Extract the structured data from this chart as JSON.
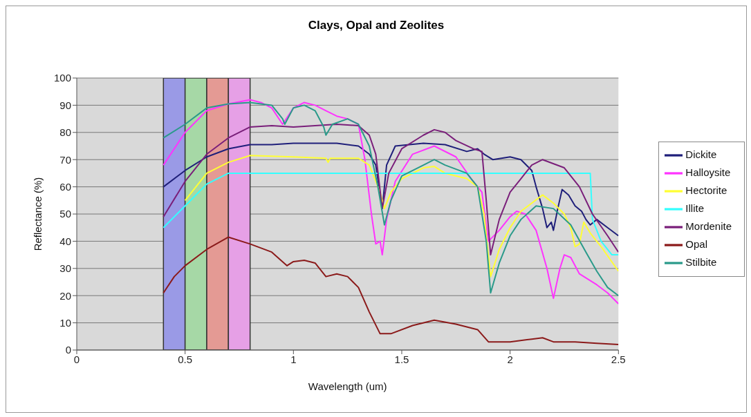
{
  "chart_data": {
    "type": "line",
    "title": "Clays, Opal and Zeolites",
    "xlabel": "Wavelength (um)",
    "ylabel": "Reflectance (%)",
    "xlim": [
      0,
      2.5
    ],
    "xticks": [
      0,
      0.5,
      1,
      1.5,
      2,
      2.5
    ],
    "ylim": [
      0,
      100
    ],
    "yticks": [
      0,
      10,
      20,
      30,
      40,
      50,
      60,
      70,
      80,
      90,
      100
    ],
    "grid": "y",
    "legend": "right",
    "marker": "none",
    "line_style": "solid",
    "bands": [
      {
        "axis": "x",
        "from": 0.4,
        "to": 0.5,
        "color": "#9a9ae6"
      },
      {
        "axis": "x",
        "from": 0.5,
        "to": 0.6,
        "color": "#a6d8a6"
      },
      {
        "axis": "x",
        "from": 0.6,
        "to": 0.7,
        "color": "#e49a94"
      },
      {
        "axis": "x",
        "from": 0.7,
        "to": 0.8,
        "color": "#e6a0e6"
      }
    ],
    "series": [
      {
        "name": "Dickite",
        "color": "#1f1f7a",
        "x": [
          0.4,
          0.5,
          0.6,
          0.7,
          0.8,
          0.9,
          1.0,
          1.2,
          1.3,
          1.35,
          1.38,
          1.41,
          1.43,
          1.47,
          1.6,
          1.7,
          1.8,
          1.85,
          1.88,
          1.92,
          2.0,
          2.05,
          2.1,
          2.12,
          2.15,
          2.17,
          2.19,
          2.2,
          2.22,
          2.24,
          2.27,
          2.3,
          2.33,
          2.35,
          2.37,
          2.4,
          2.45,
          2.5
        ],
        "values": [
          60,
          66,
          71,
          74,
          75.5,
          75.5,
          76,
          76,
          75,
          72,
          68,
          52,
          68,
          75,
          76,
          75.5,
          73,
          74,
          72,
          70,
          71,
          70,
          66,
          60,
          52,
          45,
          47,
          44,
          52,
          59,
          57,
          53,
          51,
          48,
          46,
          48,
          45,
          42
        ]
      },
      {
        "name": "Halloysite",
        "color": "#ff33ff",
        "x": [
          0.4,
          0.5,
          0.6,
          0.7,
          0.8,
          0.85,
          0.9,
          0.95,
          1.0,
          1.05,
          1.1,
          1.15,
          1.2,
          1.25,
          1.3,
          1.33,
          1.36,
          1.38,
          1.4,
          1.41,
          1.43,
          1.47,
          1.55,
          1.65,
          1.75,
          1.82,
          1.87,
          1.9,
          1.95,
          2.0,
          2.03,
          2.07,
          2.12,
          2.17,
          2.2,
          2.23,
          2.25,
          2.28,
          2.32,
          2.4,
          2.45,
          2.5
        ],
        "values": [
          68,
          80,
          88,
          90.5,
          92,
          91,
          89,
          83,
          89,
          91,
          90,
          88,
          86,
          85,
          83,
          70,
          50,
          39,
          40,
          35,
          48,
          62,
          72,
          75,
          71,
          63,
          58,
          40,
          44,
          49,
          51,
          50,
          44,
          30,
          19,
          30,
          35,
          34,
          28,
          24,
          21,
          17
        ]
      },
      {
        "name": "Hectorite",
        "color": "#ffff33",
        "x": [
          0.5,
          0.6,
          0.7,
          0.8,
          1.0,
          1.15,
          1.16,
          1.17,
          1.3,
          1.35,
          1.4,
          1.42,
          1.45,
          1.5,
          1.6,
          1.65,
          1.7,
          1.8,
          1.85,
          1.88,
          1.91,
          1.95,
          2.0,
          2.05,
          2.15,
          2.2,
          2.25,
          2.28,
          2.3,
          2.32,
          2.34,
          2.37,
          2.42,
          2.5
        ],
        "values": [
          55,
          65,
          69,
          71.5,
          71,
          70.5,
          69,
          70.5,
          70.5,
          68,
          58,
          52,
          58,
          63,
          67,
          67.5,
          65,
          63,
          60,
          50,
          27,
          37,
          45,
          51,
          57,
          54,
          50,
          45,
          38,
          39,
          47,
          43,
          38,
          29
        ]
      },
      {
        "name": "Illite",
        "color": "#33ffff",
        "x": [
          0.4,
          0.5,
          0.6,
          0.7,
          0.8,
          2.37,
          2.38,
          2.42,
          2.47,
          2.5
        ],
        "values": [
          45,
          53,
          61,
          65,
          65,
          65,
          48,
          40,
          35,
          35
        ]
      },
      {
        "name": "Mordenite",
        "color": "#7a1f7a",
        "x": [
          0.4,
          0.5,
          0.6,
          0.7,
          0.8,
          0.9,
          1.0,
          1.1,
          1.2,
          1.3,
          1.35,
          1.38,
          1.41,
          1.44,
          1.5,
          1.6,
          1.65,
          1.7,
          1.75,
          1.83,
          1.87,
          1.89,
          1.91,
          1.95,
          2.0,
          2.05,
          2.1,
          2.15,
          2.25,
          2.32,
          2.38,
          2.45,
          2.5
        ],
        "values": [
          49,
          62,
          72,
          78,
          82,
          82.5,
          82,
          82.5,
          83,
          82.5,
          79,
          72,
          52,
          65,
          74,
          79,
          81,
          80,
          77,
          74,
          73,
          55,
          35,
          48,
          58,
          63,
          68,
          70,
          67,
          60,
          50,
          42,
          36
        ]
      },
      {
        "name": "Opal",
        "color": "#8b1a1a",
        "x": [
          0.4,
          0.45,
          0.5,
          0.6,
          0.7,
          0.8,
          0.9,
          0.97,
          1.0,
          1.05,
          1.1,
          1.15,
          1.2,
          1.25,
          1.3,
          1.35,
          1.4,
          1.45,
          1.55,
          1.65,
          1.75,
          1.85,
          1.9,
          2.0,
          2.1,
          2.15,
          2.2,
          2.3,
          2.4,
          2.5
        ],
        "values": [
          21,
          27,
          31,
          37,
          41.5,
          39,
          36,
          31,
          32.5,
          33,
          32,
          27,
          28,
          27,
          23,
          14,
          6,
          6,
          9,
          11,
          9.5,
          7.5,
          3,
          3,
          4,
          4.5,
          3,
          3,
          2.5,
          2
        ]
      },
      {
        "name": "Stilbite",
        "color": "#2a9a8a",
        "x": [
          0.4,
          0.5,
          0.6,
          0.7,
          0.8,
          0.9,
          0.95,
          0.96,
          1.0,
          1.05,
          1.1,
          1.14,
          1.15,
          1.18,
          1.25,
          1.3,
          1.35,
          1.39,
          1.42,
          1.45,
          1.5,
          1.6,
          1.65,
          1.7,
          1.8,
          1.85,
          1.89,
          1.91,
          1.95,
          2.0,
          2.05,
          2.12,
          2.2,
          2.28,
          2.35,
          2.4,
          2.45,
          2.5
        ],
        "values": [
          78,
          83,
          89,
          90.5,
          91,
          90,
          85,
          83,
          89,
          90,
          88,
          82,
          79,
          83,
          85,
          83,
          75,
          60,
          46,
          55,
          64,
          68,
          70,
          68,
          65,
          60,
          40,
          21,
          32,
          42,
          48,
          53,
          52,
          46,
          36,
          29,
          23,
          20
        ]
      }
    ]
  }
}
